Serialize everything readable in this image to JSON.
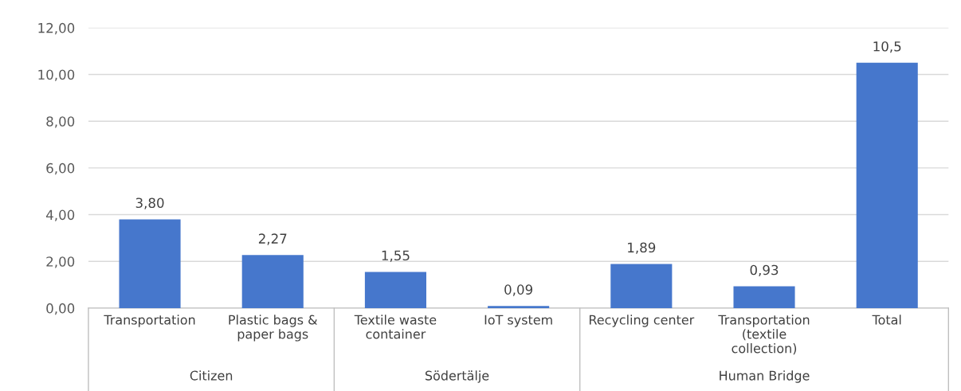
{
  "chart_data": {
    "type": "bar",
    "categories": [
      "Transportation",
      "Plastic bags &\npaper bags",
      "Textile waste\ncontainer",
      "IoT system",
      "Recycling center",
      "Transportation\n(textile\ncollection)",
      "Total"
    ],
    "values": [
      3.8,
      2.27,
      1.55,
      0.09,
      1.89,
      0.93,
      10.5
    ],
    "value_labels": [
      "3,80",
      "2,27",
      "1,55",
      "0,09",
      "1,89",
      "0,93",
      "10,5"
    ],
    "color": "#4677cc",
    "ylim": [
      0,
      12
    ],
    "yticks": [
      {
        "value": 0,
        "label": "0,00"
      },
      {
        "value": 2,
        "label": "2,00"
      },
      {
        "value": 4,
        "label": "4,00"
      },
      {
        "value": 6,
        "label": "6,00"
      },
      {
        "value": 8,
        "label": "8,00"
      },
      {
        "value": 10,
        "label": "10,00"
      },
      {
        "value": 12,
        "label": "12,00"
      }
    ],
    "grid": "y",
    "annotations": [
      "Citizen",
      "Södertälje",
      "Human Bridge"
    ]
  }
}
